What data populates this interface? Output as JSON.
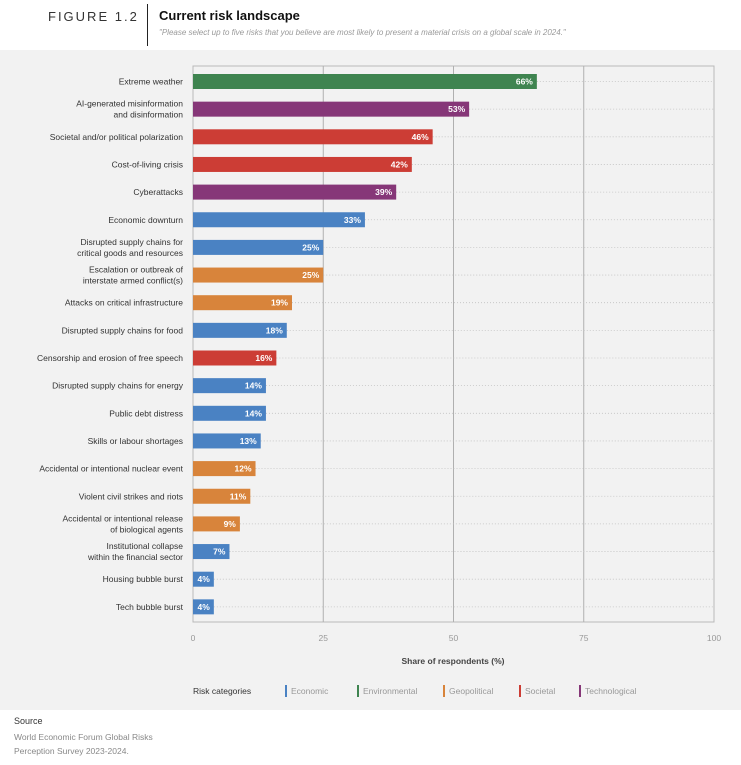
{
  "figure": {
    "label": "FIGURE 1.2",
    "title": "Current risk landscape",
    "subtitle": "\"Please select up to five risks that you believe are most likely to present a material crisis on a global scale in 2024.\""
  },
  "chart_data": {
    "type": "bar",
    "orientation": "horizontal",
    "title": "Current risk landscape",
    "xlabel": "Share of respondents (%)",
    "ylabel": "",
    "xlim": [
      0,
      100
    ],
    "xticks": [
      0,
      25,
      50,
      75,
      100
    ],
    "categories": [
      "Extreme weather",
      "AI-generated misinformation\nand disinformation",
      "Societal and/or political polarization",
      "Cost-of-living crisis",
      "Cyberattacks",
      "Economic downturn",
      "Disrupted supply chains for\ncritical goods and resources",
      "Escalation or outbreak of\ninterstate armed conflict(s)",
      "Attacks on critical infrastructure",
      "Disrupted supply chains for food",
      "Censorship and erosion of free speech",
      "Disrupted supply chains for energy",
      "Public debt distress",
      "Skills or labour shortages",
      "Accidental or intentional nuclear event",
      "Violent civil strikes and riots",
      "Accidental or intentional release\nof biological agents",
      "Institutional collapse\nwithin the financial sector",
      "Housing bubble burst",
      "Tech bubble burst"
    ],
    "values": [
      66,
      53,
      46,
      42,
      39,
      33,
      25,
      25,
      19,
      18,
      16,
      14,
      14,
      13,
      12,
      11,
      9,
      7,
      4,
      4
    ],
    "value_labels": [
      "66%",
      "53%",
      "46%",
      "42%",
      "39%",
      "33%",
      "25%",
      "25%",
      "19%",
      "18%",
      "16%",
      "14%",
      "14%",
      "13%",
      "12%",
      "11%",
      "9%",
      "7%",
      "4%",
      "4%"
    ],
    "bar_category": [
      "Environmental",
      "Technological",
      "Societal",
      "Societal",
      "Technological",
      "Economic",
      "Economic",
      "Geopolitical",
      "Geopolitical",
      "Economic",
      "Societal",
      "Economic",
      "Economic",
      "Economic",
      "Geopolitical",
      "Geopolitical",
      "Geopolitical",
      "Economic",
      "Economic",
      "Economic"
    ],
    "legend": {
      "title": "Risk categories",
      "placement": "bottom",
      "items": [
        {
          "name": "Economic",
          "color": "#4a82c3"
        },
        {
          "name": "Environmental",
          "color": "#3f8450"
        },
        {
          "name": "Geopolitical",
          "color": "#d8843b"
        },
        {
          "name": "Societal",
          "color": "#cc3d35"
        },
        {
          "name": "Technological",
          "color": "#863778"
        }
      ]
    }
  },
  "source": {
    "title": "Source",
    "text": "World Economic Forum Global Risks Perception Survey 2023-2024."
  }
}
